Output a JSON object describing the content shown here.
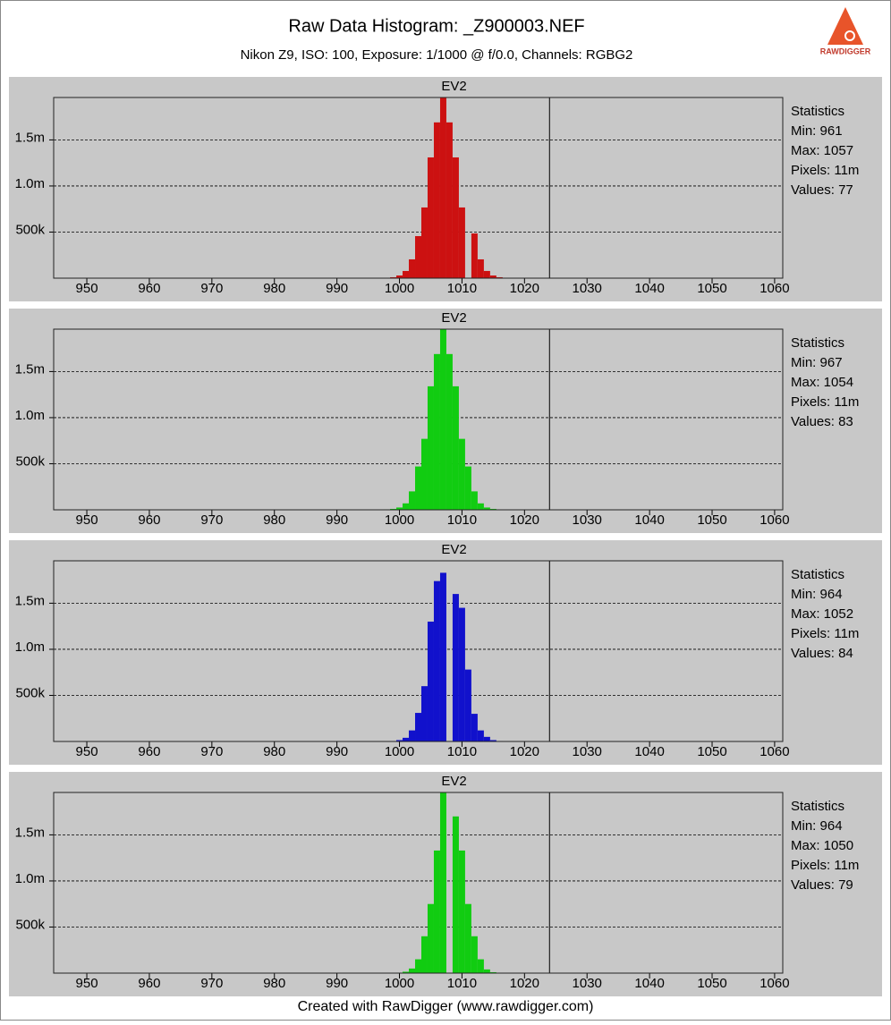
{
  "header": {
    "title": "Raw Data Histogram: _Z900003.NEF",
    "subtitle": "Nikon Z9, ISO: 100, Exposure: 1/1000 @ f/0.0, Channels: RGBG2",
    "logo_text": "RAWDIGGER"
  },
  "footer": "Created with RawDigger (www.rawdigger.com)",
  "chart_data": [
    {
      "type": "histogram",
      "title": "EV2",
      "color": "#cc1111",
      "bins": [
        997.5,
        998.5,
        999.5,
        1000.5,
        1001.5,
        1002.5,
        1003.5,
        1004.5,
        1005.5,
        1006.5,
        1007.5,
        1008.5,
        1009.5,
        1010.5,
        1011.5,
        1012.5,
        1013.5,
        1014.5,
        1015.5,
        1016.5,
        1017.5
      ],
      "counts": [
        0,
        10000,
        29000,
        78000,
        204000,
        456000,
        767000,
        1310000,
        1690000,
        1960000,
        1690000,
        1310000,
        767000,
        0,
        485000,
        204000,
        78000,
        29000,
        10000,
        0
      ],
      "xlim": [
        944.7,
        1061.3
      ],
      "xticks": [
        950,
        960,
        970,
        980,
        990,
        1000,
        1010,
        1020,
        1030,
        1040,
        1050,
        1060
      ],
      "ylim": [
        0,
        1960000
      ],
      "yticks": [
        {
          "value": 500000,
          "label": "500k"
        },
        {
          "value": 1000000,
          "label": "1.0m"
        },
        {
          "value": 1500000,
          "label": "1.5m"
        }
      ],
      "grid": true,
      "reference_line": 1024,
      "stats_title": "Statistics",
      "stats": [
        "Min: 961",
        "Max: 1057",
        "Pixels: 11m",
        "Values: 77"
      ]
    },
    {
      "type": "histogram",
      "title": "EV2",
      "color": "#11cc11",
      "bins": [
        997.5,
        998.5,
        999.5,
        1000.5,
        1001.5,
        1002.5,
        1003.5,
        1004.5,
        1005.5,
        1006.5,
        1007.5,
        1008.5,
        1009.5,
        1010.5,
        1011.5,
        1012.5,
        1013.5,
        1014.5,
        1015.5,
        1016.5,
        1017.5
      ],
      "counts": [
        5000,
        10000,
        25000,
        70000,
        200000,
        470000,
        770000,
        1340000,
        1690000,
        1960000,
        1690000,
        1340000,
        770000,
        470000,
        200000,
        70000,
        25000,
        10000,
        0,
        0
      ],
      "xlim": [
        944.7,
        1061.3
      ],
      "xticks": [
        950,
        960,
        970,
        980,
        990,
        1000,
        1010,
        1020,
        1030,
        1040,
        1050,
        1060
      ],
      "ylim": [
        0,
        1960000
      ],
      "yticks": [
        {
          "value": 500000,
          "label": "500k"
        },
        {
          "value": 1000000,
          "label": "1.0m"
        },
        {
          "value": 1500000,
          "label": "1.5m"
        }
      ],
      "grid": true,
      "reference_line": 1024,
      "stats_title": "Statistics",
      "stats": [
        "Min: 967",
        "Max: 1054",
        "Pixels: 11m",
        "Values: 83"
      ]
    },
    {
      "type": "histogram",
      "title": "EV2",
      "color": "#1111cc",
      "bins": [
        997.5,
        998.5,
        999.5,
        1000.5,
        1001.5,
        1002.5,
        1003.5,
        1004.5,
        1005.5,
        1006.5,
        1007.5,
        1008.5,
        1009.5,
        1010.5,
        1011.5,
        1012.5,
        1013.5,
        1014.5,
        1015.5,
        1016.5,
        1017.5
      ],
      "counts": [
        0,
        5000,
        15000,
        40000,
        120000,
        310000,
        600000,
        1300000,
        1740000,
        1830000,
        0,
        1600000,
        1450000,
        780000,
        300000,
        120000,
        50000,
        15000,
        5000,
        0
      ],
      "xlim": [
        944.7,
        1061.3
      ],
      "xticks": [
        950,
        960,
        970,
        980,
        990,
        1000,
        1010,
        1020,
        1030,
        1040,
        1050,
        1060
      ],
      "ylim": [
        0,
        1960000
      ],
      "yticks": [
        {
          "value": 500000,
          "label": "500k"
        },
        {
          "value": 1000000,
          "label": "1.0m"
        },
        {
          "value": 1500000,
          "label": "1.5m"
        }
      ],
      "grid": true,
      "reference_line": 1024,
      "stats_title": "Statistics",
      "stats": [
        "Min: 964",
        "Max: 1052",
        "Pixels: 11m",
        "Values: 84"
      ]
    },
    {
      "type": "histogram",
      "title": "EV2",
      "color": "#11cc11",
      "bins": [
        997.5,
        998.5,
        999.5,
        1000.5,
        1001.5,
        1002.5,
        1003.5,
        1004.5,
        1005.5,
        1006.5,
        1007.5,
        1008.5,
        1009.5,
        1010.5,
        1011.5,
        1012.5,
        1013.5,
        1014.5,
        1015.5,
        1016.5,
        1017.5
      ],
      "counts": [
        0,
        0,
        5000,
        15000,
        50000,
        150000,
        400000,
        750000,
        1330000,
        1960000,
        0,
        1700000,
        1330000,
        750000,
        400000,
        150000,
        40000,
        10000,
        0,
        0
      ],
      "xlim": [
        944.7,
        1061.3
      ],
      "xticks": [
        950,
        960,
        970,
        980,
        990,
        1000,
        1010,
        1020,
        1030,
        1040,
        1050,
        1060
      ],
      "ylim": [
        0,
        1960000
      ],
      "yticks": [
        {
          "value": 500000,
          "label": "500k"
        },
        {
          "value": 1000000,
          "label": "1.0m"
        },
        {
          "value": 1500000,
          "label": "1.5m"
        }
      ],
      "grid": true,
      "reference_line": 1024,
      "stats_title": "Statistics",
      "stats": [
        "Min: 964",
        "Max: 1050",
        "Pixels: 11m",
        "Values: 79"
      ]
    }
  ]
}
